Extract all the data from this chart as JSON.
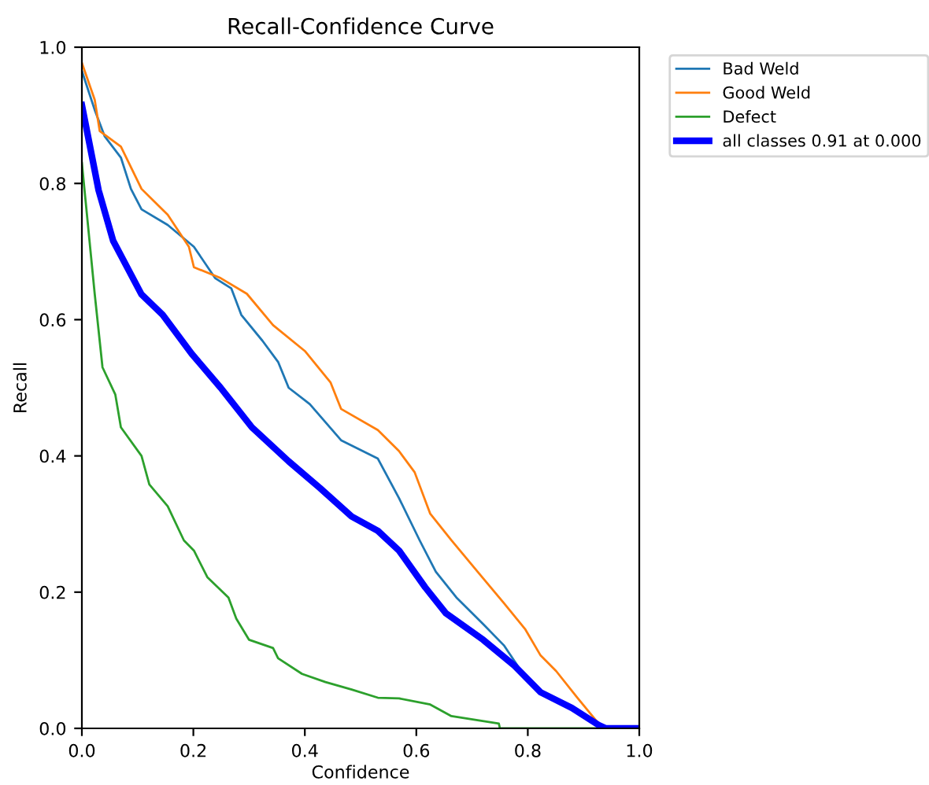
{
  "chart_data": {
    "type": "line",
    "title": "Recall-Confidence Curve",
    "xlabel": "Confidence",
    "ylabel": "Recall",
    "xlim": [
      0.0,
      1.0
    ],
    "ylim": [
      0.0,
      1.0
    ],
    "xticks": [
      {
        "value": 0,
        "label": "0.0"
      },
      0.2,
      0.4,
      0.6,
      0.8,
      {
        "value": 1,
        "label": "1.0"
      }
    ],
    "yticks": [
      {
        "value": 0,
        "label": "0.0"
      },
      0.2,
      0.4,
      0.6,
      0.8,
      {
        "value": 1,
        "label": "1.0"
      }
    ],
    "grid": false,
    "legend": "top right",
    "marker": "none",
    "line_style": "solid",
    "series": [
      {
        "name": "Bad Weld",
        "color": "#1f77b4",
        "x": [
          0,
          0.023,
          0.041,
          0.07,
          0.088,
          0.107,
          0.154,
          0.201,
          0.239,
          0.268,
          0.286,
          0.324,
          0.352,
          0.371,
          0.409,
          0.465,
          0.531,
          0.569,
          0.606,
          0.635,
          0.672,
          0.72,
          0.757,
          0.785
        ],
        "values": [
          0.965,
          0.908,
          0.869,
          0.838,
          0.792,
          0.762,
          0.739,
          0.707,
          0.661,
          0.646,
          0.607,
          0.569,
          0.538,
          0.5,
          0.476,
          0.423,
          0.396,
          0.338,
          0.276,
          0.23,
          0.192,
          0.153,
          0.122,
          0.088
        ]
      },
      {
        "name": "Good Weld",
        "color": "#ff7f0e",
        "x": [
          0,
          0.023,
          0.032,
          0.07,
          0.107,
          0.154,
          0.192,
          0.201,
          0.249,
          0.296,
          0.343,
          0.4,
          0.446,
          0.465,
          0.531,
          0.569,
          0.597,
          0.625,
          0.663,
          0.71,
          0.757,
          0.795,
          0.823,
          0.851,
          0.889,
          0.927,
          0.94,
          1.0
        ],
        "values": [
          0.977,
          0.923,
          0.877,
          0.854,
          0.792,
          0.754,
          0.707,
          0.677,
          0.661,
          0.638,
          0.592,
          0.554,
          0.508,
          0.469,
          0.438,
          0.407,
          0.376,
          0.315,
          0.276,
          0.23,
          0.184,
          0.146,
          0.107,
          0.084,
          0.045,
          0.007,
          0,
          0
        ]
      },
      {
        "name": "Defect",
        "color": "#2ca02c",
        "x": [
          0,
          0.023,
          0.037,
          0.06,
          0.07,
          0.107,
          0.121,
          0.154,
          0.183,
          0.201,
          0.225,
          0.263,
          0.277,
          0.3,
          0.343,
          0.352,
          0.395,
          0.437,
          0.484,
          0.531,
          0.569,
          0.625,
          0.663,
          0.748,
          0.75,
          1.0
        ],
        "values": [
          0.83,
          0.638,
          0.53,
          0.49,
          0.442,
          0.4,
          0.358,
          0.326,
          0.276,
          0.261,
          0.222,
          0.192,
          0.161,
          0.13,
          0.118,
          0.103,
          0.08,
          0.068,
          0.057,
          0.045,
          0.044,
          0.035,
          0.018,
          0.007,
          0,
          0
        ]
      },
      {
        "name": "all classes 0.91 at 0.000",
        "color": "#0000ff",
        "x": [
          0,
          0.03,
          0.056,
          0.107,
          0.145,
          0.197,
          0.249,
          0.305,
          0.371,
          0.427,
          0.484,
          0.531,
          0.569,
          0.616,
          0.653,
          0.72,
          0.776,
          0.823,
          0.879,
          0.927,
          0.94,
          1.0
        ],
        "values": [
          0.915,
          0.79,
          0.716,
          0.637,
          0.607,
          0.55,
          0.5,
          0.442,
          0.392,
          0.353,
          0.311,
          0.29,
          0.261,
          0.207,
          0.169,
          0.13,
          0.092,
          0.053,
          0.03,
          0.005,
          0,
          0
        ]
      }
    ]
  }
}
